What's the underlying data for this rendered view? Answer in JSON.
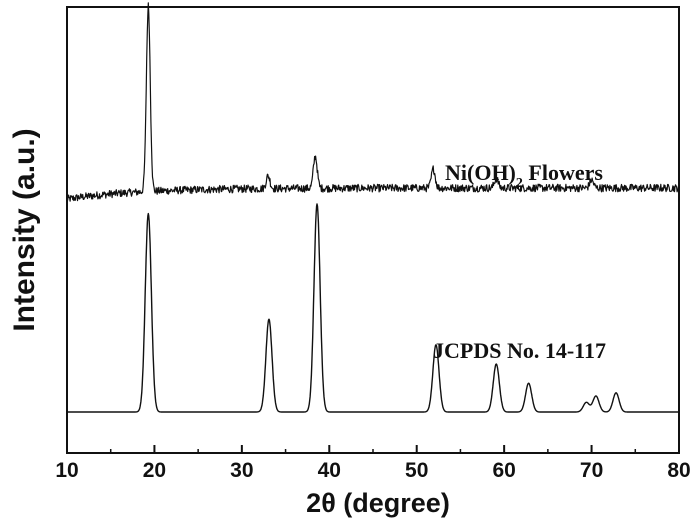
{
  "chart_data": {
    "type": "line",
    "xlabel": "2θ (degree)",
    "ylabel": "Intensity (a.u.)",
    "xlim": [
      10,
      80
    ],
    "x_ticks": [
      "10",
      "20",
      "30",
      "40",
      "50",
      "60",
      "70",
      "80"
    ],
    "y_ticks_labeled": false,
    "grid": false,
    "legend": "none",
    "series": [
      {
        "name": "Ni(OH)2 Flowers",
        "label_main": "Ni(OH)",
        "label_sub": "2",
        "label_tail": " Flowers",
        "baseline": 0.7,
        "noise": 0.012,
        "peaks": [
          {
            "x": 19.3,
            "height": 0.58
          },
          {
            "x": 33.0,
            "height": 0.04
          },
          {
            "x": 38.4,
            "height": 0.1
          },
          {
            "x": 51.9,
            "height": 0.06
          },
          {
            "x": 59.1,
            "height": 0.03
          },
          {
            "x": 70.0,
            "height": 0.025
          }
        ]
      },
      {
        "name": "JCPDS No. 14-117",
        "baseline": 0.0,
        "noise": 0.0,
        "peaks": [
          {
            "x": 19.3,
            "height": 0.62
          },
          {
            "x": 33.1,
            "height": 0.29
          },
          {
            "x": 38.6,
            "height": 0.65
          },
          {
            "x": 52.2,
            "height": 0.21
          },
          {
            "x": 59.1,
            "height": 0.15
          },
          {
            "x": 62.8,
            "height": 0.09
          },
          {
            "x": 69.4,
            "height": 0.03
          },
          {
            "x": 70.5,
            "height": 0.05
          },
          {
            "x": 72.8,
            "height": 0.06
          }
        ]
      }
    ]
  }
}
